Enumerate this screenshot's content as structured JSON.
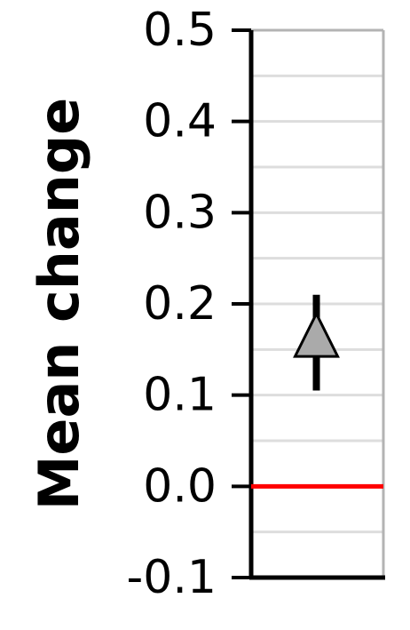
{
  "chart_data": {
    "type": "scatter",
    "title": "",
    "xlabel": "",
    "ylabel": "Mean change",
    "ylim": [
      -0.1,
      0.5
    ],
    "yticks": [
      "0.5",
      "0.4",
      "0.3",
      "0.2",
      "0.1",
      "0.0",
      "-0.1"
    ],
    "minor_grid_step": 0.05,
    "grid": true,
    "reference_line": {
      "y": 0.0,
      "color": "#ff0000"
    },
    "point": {
      "marker": "triangle-up",
      "y": 0.16,
      "error_low": 0.105,
      "error_high": 0.21,
      "fill": "#aaaaaa"
    }
  }
}
